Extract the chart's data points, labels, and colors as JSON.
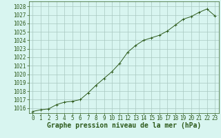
{
  "x": [
    0,
    1,
    2,
    3,
    4,
    5,
    6,
    7,
    8,
    9,
    10,
    11,
    12,
    13,
    14,
    15,
    16,
    17,
    18,
    19,
    20,
    21,
    22,
    23
  ],
  "y": [
    1015.6,
    1015.8,
    1015.9,
    1016.4,
    1016.7,
    1016.8,
    1017.0,
    1017.8,
    1018.7,
    1019.5,
    1020.3,
    1021.3,
    1022.6,
    1023.4,
    1024.0,
    1024.3,
    1024.6,
    1025.1,
    1025.8,
    1026.5,
    1026.8,
    1027.3,
    1027.7,
    1026.9
  ],
  "line_color": "#2d5a1b",
  "marker": "+",
  "marker_size": 3,
  "bg_color": "#d8f5f0",
  "grid_color": "#a8c8c0",
  "xlabel": "Graphe pression niveau de la mer (hPa)",
  "xlabel_fontsize": 7,
  "tick_fontsize": 5.5,
  "ylim": [
    1015.4,
    1028.6
  ],
  "yticks": [
    1016,
    1017,
    1018,
    1019,
    1020,
    1021,
    1022,
    1023,
    1024,
    1025,
    1026,
    1027,
    1028
  ],
  "xlim": [
    -0.5,
    23.5
  ],
  "xticks": [
    0,
    1,
    2,
    3,
    4,
    5,
    6,
    7,
    8,
    9,
    10,
    11,
    12,
    13,
    14,
    15,
    16,
    17,
    18,
    19,
    20,
    21,
    22,
    23
  ]
}
